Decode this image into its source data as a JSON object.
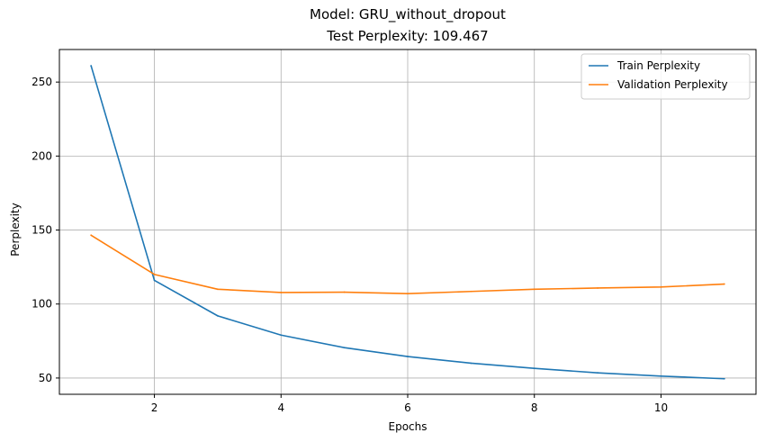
{
  "chart_data": {
    "type": "line",
    "title": "Model: GRU_without_dropout",
    "subtitle": "Test Perplexity: 109.467",
    "xlabel": "Epochs",
    "ylabel": "Perplexity",
    "x": [
      1,
      2,
      3,
      4,
      5,
      6,
      7,
      8,
      9,
      10,
      11
    ],
    "xlim": [
      0.5,
      11.5
    ],
    "ylim": [
      39,
      272
    ],
    "xticks": [
      2,
      4,
      6,
      8,
      10
    ],
    "yticks": [
      50,
      100,
      150,
      200,
      250
    ],
    "grid": true,
    "legend_position": "top-right",
    "series": [
      {
        "name": "Train Perplexity",
        "color": "#1f77b4",
        "values": [
          261,
          116,
          92,
          79,
          70.5,
          64.5,
          60,
          56.5,
          53.5,
          51.3,
          49.5
        ]
      },
      {
        "name": "Validation Perplexity",
        "color": "#ff7f0e",
        "values": [
          146.5,
          120,
          110,
          107.8,
          108,
          107,
          108.5,
          110,
          110.8,
          111.5,
          113.5
        ]
      }
    ]
  }
}
